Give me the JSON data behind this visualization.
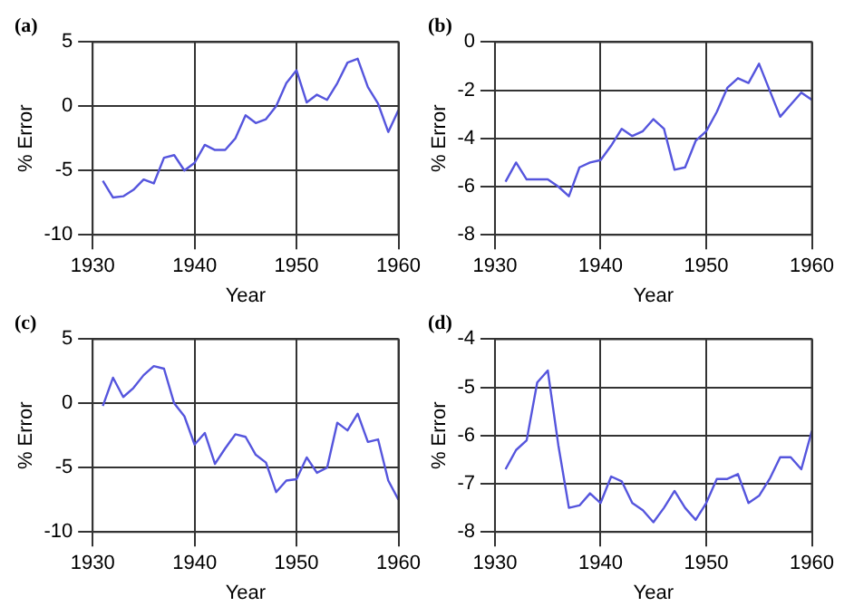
{
  "chart_data": [
    {
      "type": "line",
      "title": "(a)",
      "xlabel": "Year",
      "ylabel": "% Error",
      "xlim": [
        1930,
        1960
      ],
      "xticks": [
        1930,
        1940,
        1950,
        1960
      ],
      "ylim": [
        -10,
        5
      ],
      "yticks": [
        -10,
        -5,
        0,
        5
      ],
      "grid": true,
      "line_style": "solid",
      "marker": "none",
      "legend": false,
      "x": [
        1931,
        1932,
        1933,
        1934,
        1935,
        1936,
        1937,
        1938,
        1939,
        1940,
        1941,
        1942,
        1943,
        1944,
        1945,
        1946,
        1947,
        1948,
        1949,
        1950,
        1951,
        1952,
        1953,
        1954,
        1955,
        1956,
        1957,
        1958,
        1959,
        1960
      ],
      "series": [
        {
          "color": "#5555dd",
          "values": [
            -5.8,
            -7.1,
            -7.0,
            -6.5,
            -5.7,
            -6.0,
            -4.0,
            -3.8,
            -5.0,
            -4.4,
            -3.0,
            -3.4,
            -3.4,
            -2.5,
            -0.7,
            -1.3,
            -1.0,
            0.0,
            1.8,
            2.8,
            0.3,
            0.9,
            0.5,
            1.8,
            3.4,
            3.7,
            1.5,
            0.2,
            -2.0,
            -0.3
          ]
        }
      ]
    },
    {
      "type": "line",
      "title": "(b)",
      "xlabel": "Year",
      "ylabel": "% Error",
      "xlim": [
        1930,
        1960
      ],
      "xticks": [
        1930,
        1940,
        1950,
        1960
      ],
      "ylim": [
        -8,
        0
      ],
      "yticks": [
        -8,
        -6,
        -4,
        -2,
        0
      ],
      "grid": true,
      "line_style": "solid",
      "marker": "none",
      "legend": false,
      "x": [
        1931,
        1932,
        1933,
        1934,
        1935,
        1936,
        1937,
        1938,
        1939,
        1940,
        1941,
        1942,
        1943,
        1944,
        1945,
        1946,
        1947,
        1948,
        1949,
        1950,
        1951,
        1952,
        1953,
        1954,
        1955,
        1956,
        1957,
        1958,
        1959,
        1960
      ],
      "series": [
        {
          "color": "#5555dd",
          "values": [
            -5.8,
            -5.0,
            -5.7,
            -5.7,
            -5.7,
            -6.0,
            -6.4,
            -5.2,
            -5.0,
            -4.9,
            -4.3,
            -3.6,
            -3.9,
            -3.7,
            -3.2,
            -3.6,
            -5.3,
            -5.2,
            -4.1,
            -3.7,
            -2.9,
            -1.9,
            -1.5,
            -1.7,
            -0.9,
            -2.0,
            -3.1,
            -2.6,
            -2.1,
            -2.4
          ]
        }
      ]
    },
    {
      "type": "line",
      "title": "(c)",
      "xlabel": "Year",
      "ylabel": "% Error",
      "xlim": [
        1930,
        1960
      ],
      "xticks": [
        1930,
        1940,
        1950,
        1960
      ],
      "ylim": [
        -10,
        5
      ],
      "yticks": [
        -10,
        -5,
        0,
        5
      ],
      "grid": true,
      "line_style": "solid",
      "marker": "none",
      "legend": false,
      "x": [
        1931,
        1932,
        1933,
        1934,
        1935,
        1936,
        1937,
        1938,
        1939,
        1940,
        1941,
        1942,
        1943,
        1944,
        1945,
        1946,
        1947,
        1948,
        1949,
        1950,
        1951,
        1952,
        1953,
        1954,
        1955,
        1956,
        1957,
        1958,
        1959,
        1960
      ],
      "series": [
        {
          "color": "#5555dd",
          "values": [
            -0.2,
            2.0,
            0.5,
            1.2,
            2.2,
            2.9,
            2.7,
            0.0,
            -1.0,
            -3.2,
            -2.3,
            -4.7,
            -3.5,
            -2.4,
            -2.6,
            -4.0,
            -4.6,
            -6.9,
            -6.0,
            -5.9,
            -4.2,
            -5.4,
            -5.0,
            -1.5,
            -2.1,
            -0.8,
            -3.0,
            -2.8,
            -6.0,
            -7.5
          ]
        }
      ]
    },
    {
      "type": "line",
      "title": "(d)",
      "xlabel": "Year",
      "ylabel": "% Error",
      "xlim": [
        1930,
        1960
      ],
      "xticks": [
        1930,
        1940,
        1950,
        1960
      ],
      "ylim": [
        -8,
        -4
      ],
      "yticks": [
        -8,
        -7,
        -6,
        -5,
        -4
      ],
      "grid": true,
      "line_style": "solid",
      "marker": "none",
      "legend": false,
      "x": [
        1931,
        1932,
        1933,
        1934,
        1935,
        1936,
        1937,
        1938,
        1939,
        1940,
        1941,
        1942,
        1943,
        1944,
        1945,
        1946,
        1947,
        1948,
        1949,
        1950,
        1951,
        1952,
        1953,
        1954,
        1955,
        1956,
        1957,
        1958,
        1959,
        1960
      ],
      "series": [
        {
          "color": "#5555dd",
          "values": [
            -6.7,
            -6.3,
            -6.1,
            -4.9,
            -4.65,
            -6.2,
            -7.5,
            -7.45,
            -7.2,
            -7.4,
            -6.85,
            -6.95,
            -7.4,
            -7.55,
            -7.8,
            -7.5,
            -7.15,
            -7.5,
            -7.75,
            -7.4,
            -6.9,
            -6.9,
            -6.8,
            -7.4,
            -7.25,
            -6.9,
            -6.45,
            -6.45,
            -6.7,
            -5.9
          ]
        }
      ]
    }
  ]
}
